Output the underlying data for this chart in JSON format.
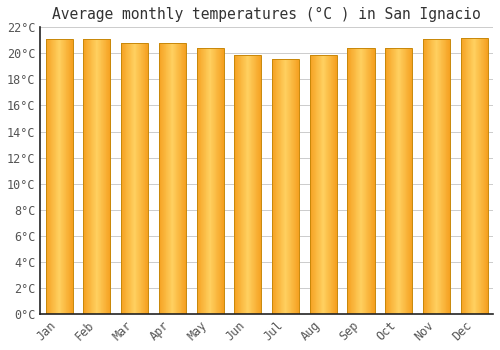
{
  "title": "Average monthly temperatures (°C ) in San Ignacio",
  "months": [
    "Jan",
    "Feb",
    "Mar",
    "Apr",
    "May",
    "Jun",
    "Jul",
    "Aug",
    "Sep",
    "Oct",
    "Nov",
    "Dec"
  ],
  "values": [
    21.1,
    21.1,
    20.8,
    20.8,
    20.4,
    19.9,
    19.6,
    19.9,
    20.4,
    20.4,
    21.1,
    21.2
  ],
  "ylim": [
    0,
    22
  ],
  "yticks": [
    0,
    2,
    4,
    6,
    8,
    10,
    12,
    14,
    16,
    18,
    20,
    22
  ],
  "bar_color_left": "#F5A020",
  "bar_color_center": "#FFD060",
  "bar_color_right": "#F5A020",
  "bar_edge_color": "#C8880A",
  "background_color": "#ffffff",
  "grid_color": "#cccccc",
  "title_fontsize": 10.5,
  "tick_fontsize": 8.5,
  "bar_width": 0.72
}
